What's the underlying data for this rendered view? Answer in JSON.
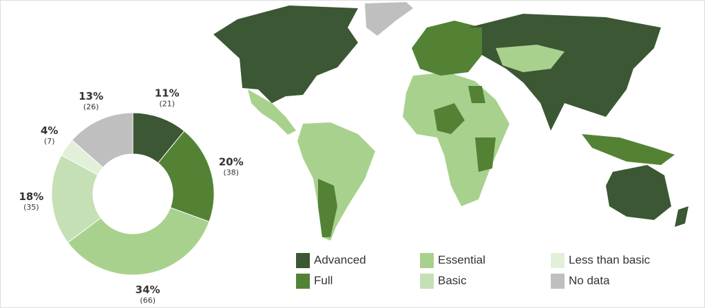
{
  "chart_data": {
    "type": "donut",
    "categories": [
      "Advanced",
      "Full",
      "Essential",
      "Basic",
      "Less than basic",
      "No data"
    ],
    "values": [
      11,
      20,
      34,
      18,
      4,
      13
    ],
    "value_labels": [
      "11%",
      "20%",
      "34%",
      "18%",
      "4%",
      "13%"
    ],
    "counts": [
      21,
      38,
      66,
      35,
      7,
      26
    ],
    "count_labels": [
      "(21)",
      "(38)",
      "(66)",
      "(35)",
      "(7)",
      "(26)"
    ],
    "colors": [
      "#3b5733",
      "#548235",
      "#a9d18e",
      "#c5e0b4",
      "#e2f0d9",
      "#bfbfbf"
    ]
  }
}
